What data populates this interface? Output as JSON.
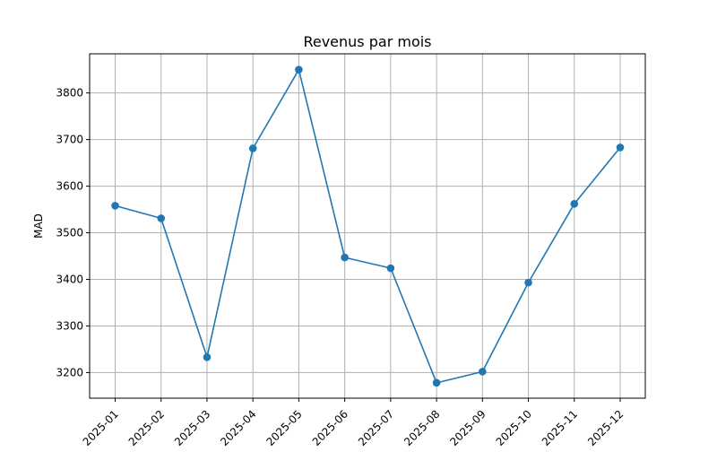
{
  "chart_data": {
    "type": "line",
    "title": "Revenus par mois",
    "xlabel": "",
    "ylabel": "MAD",
    "categories": [
      "2025-01",
      "2025-02",
      "2025-03",
      "2025-04",
      "2025-05",
      "2025-06",
      "2025-07",
      "2025-08",
      "2025-09",
      "2025-10",
      "2025-11",
      "2025-12"
    ],
    "series": [
      {
        "values": [
          3558,
          3531,
          3233,
          3681,
          3850,
          3447,
          3424,
          3178,
          3202,
          3393,
          3562,
          3683
        ],
        "color": "#1f77b4"
      }
    ],
    "ylim": [
      3145,
      3884
    ],
    "yticks": [
      3200,
      3300,
      3400,
      3500,
      3600,
      3700,
      3800
    ],
    "ytick_labels": [
      "3200",
      "3300",
      "3400",
      "3500",
      "3600",
      "3700",
      "3800"
    ],
    "grid": true,
    "legend": "none",
    "grid_color": "#b0b0b0"
  }
}
